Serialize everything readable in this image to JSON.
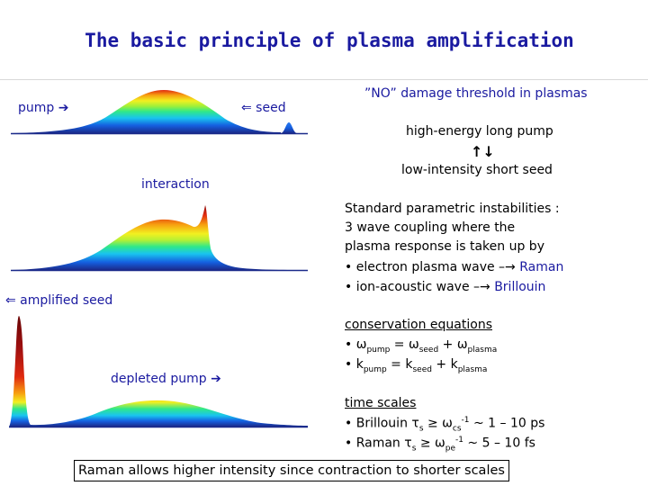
{
  "slide": {
    "title": "The basic principle of plasma amplification"
  },
  "left_panel": {
    "pump_label": "pump ➔",
    "seed_label": "⇐ seed",
    "interaction_label": "interaction",
    "amplified_seed_label": "⇐ amplified seed",
    "depleted_pump_label": "depleted pump ➔"
  },
  "right_panel": {
    "threshold_heading": "”NO” damage threshold in plasmas",
    "high_energy": "high-energy long pump",
    "arrows": "↑↓",
    "low_intensity": "low-intensity short seed",
    "instabilities_lines": [
      "Standard parametric instabilities :",
      "3 wave coupling where the",
      "plasma response is taken up by"
    ],
    "bullet_electron": "• electron plasma wave –→ ",
    "raman": "Raman",
    "bullet_ion": "• ion-acoustic wave –→ ",
    "brillouin": "Brillouin",
    "conservation_heading": "conservation equations",
    "omega_eq": {
      "bullet": "• ω",
      "pump_sub": "pump",
      "eq": " = ω",
      "seed_sub": "seed",
      "plus": " + ω",
      "plasma_sub": "plasma"
    },
    "k_eq": {
      "bullet": "• k",
      "pump_sub": "pump",
      "eq": " = k",
      "seed_sub": "seed",
      "plus": " + k",
      "plasma_sub": "plasma"
    },
    "time_scales_heading": "time scales",
    "brillouin_scale": {
      "prefix": "• Brillouin τ",
      "s_sub": "s",
      "mid": " ≥ ω",
      "cs_sub": "cs",
      "sup": "-1",
      "suffix": " ~ 1 – 10 ps"
    },
    "raman_scale": {
      "prefix": "• Raman τ",
      "s_sub": "s",
      "mid": " ≥ ω",
      "pe_sub": "pe",
      "sup": "-1",
      "suffix": " ~ 5 – 10 fs"
    }
  },
  "footer_box": "Raman allows higher intensity since contraction to shorter scales",
  "colors": {
    "title": "#1a1aa0",
    "label": "#1a1aa0",
    "raman": "#1a1aa0",
    "brillouin": "#1a1aa0"
  }
}
